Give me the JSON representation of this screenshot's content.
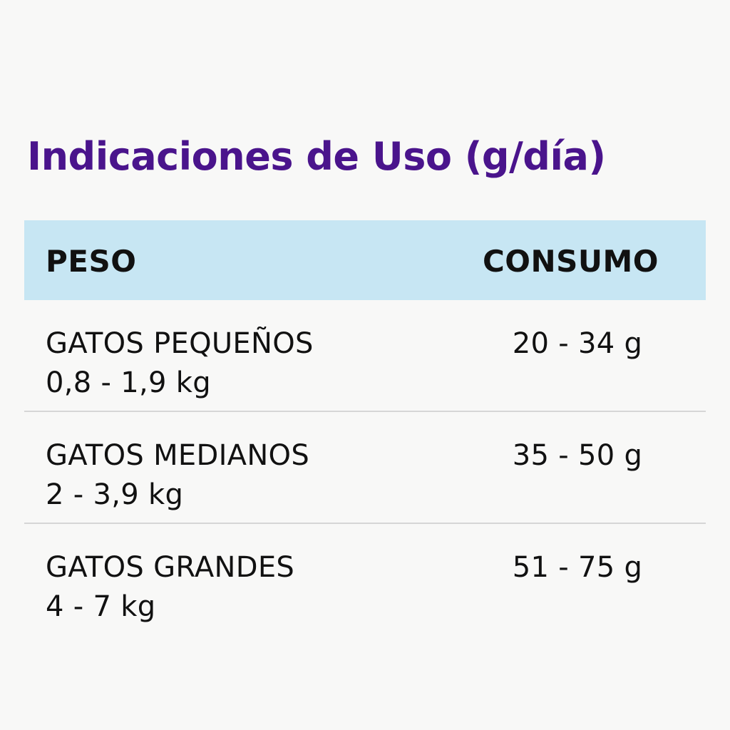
{
  "title": "Indicaciones de Uso (g/día)",
  "colors": {
    "title": "#4a148c",
    "header_background": "#c7e6f3",
    "text": "#111111",
    "divider": "#d6d6d6",
    "page_background": "#f8f8f7"
  },
  "table": {
    "headers": {
      "weight": "PESO",
      "consumption": "CONSUMO"
    },
    "rows": [
      {
        "category": "GATOS PEQUEÑOS",
        "weight_range": "0,8 - 1,9 kg",
        "consumption": "20 - 34 g"
      },
      {
        "category": "GATOS MEDIANOS",
        "weight_range": "2 - 3,9 kg",
        "consumption": "35 - 50 g"
      },
      {
        "category": "GATOS GRANDES",
        "weight_range": "4 - 7 kg",
        "consumption": "51 - 75 g"
      }
    ]
  }
}
